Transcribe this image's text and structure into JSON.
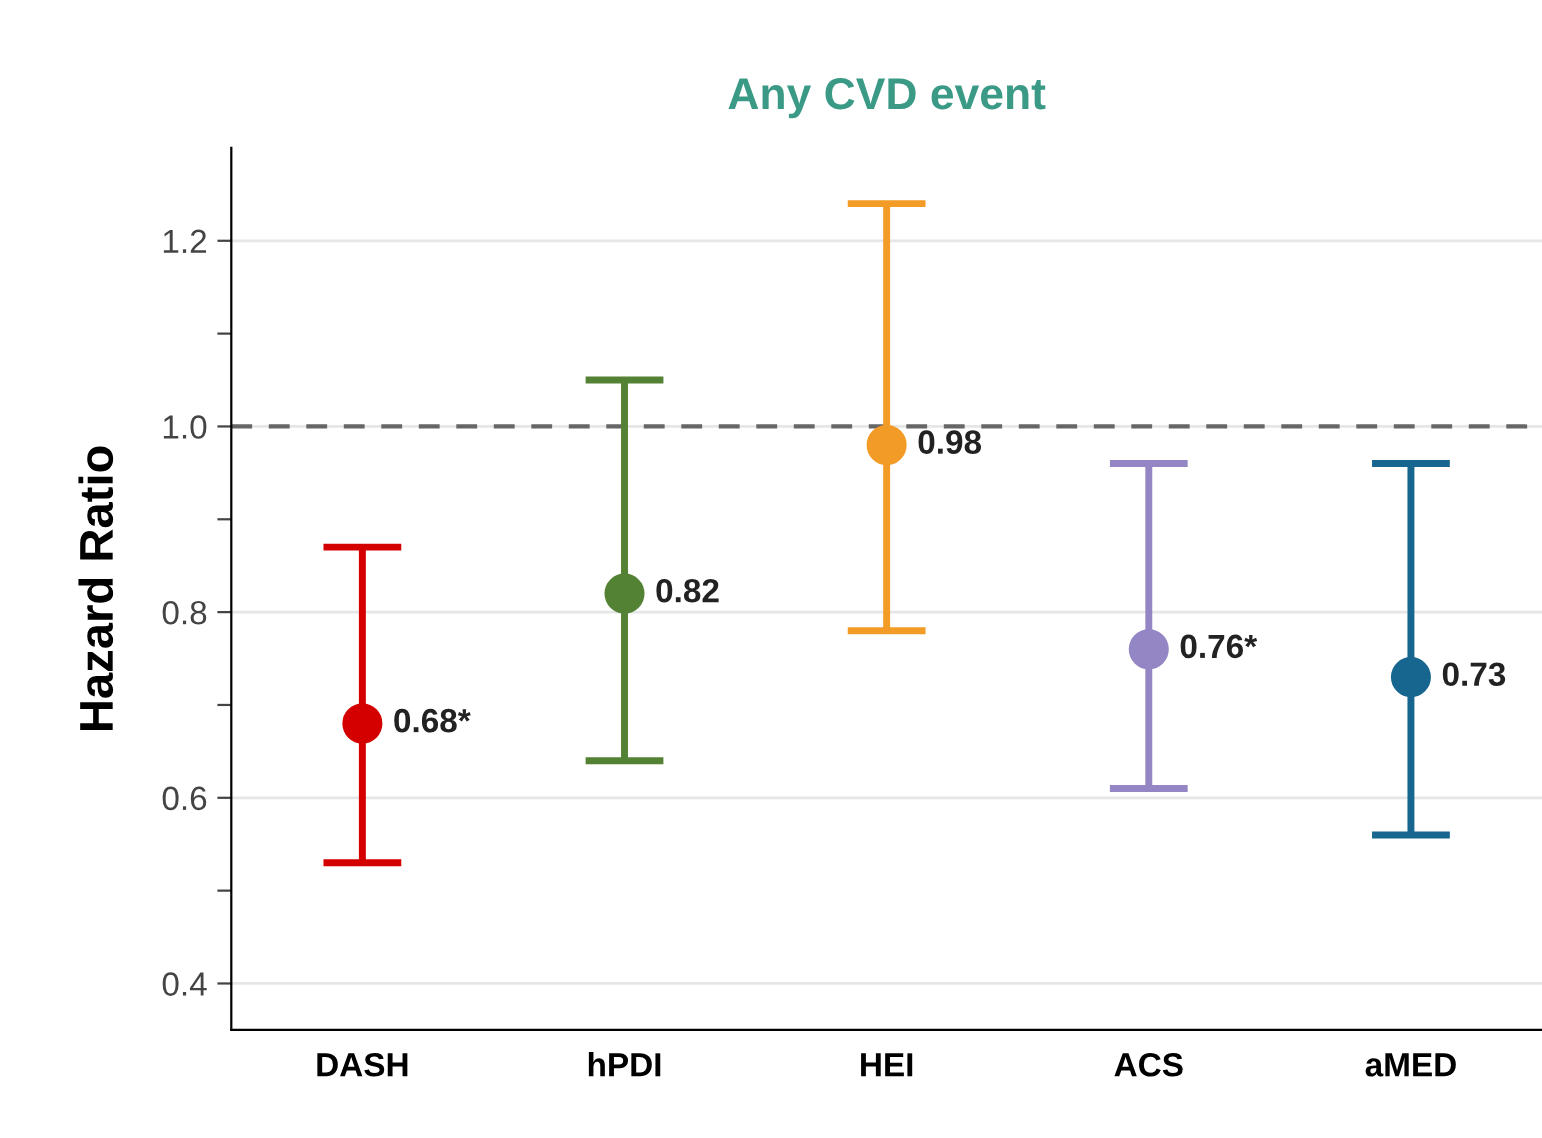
{
  "chart_data": {
    "type": "scatter",
    "title": "Any CVD event",
    "ylabel": "Hazard Ratio",
    "categories": [
      "DASH",
      "hPDI",
      "HEI",
      "ACS",
      "aMED"
    ],
    "values": [
      0.68,
      0.82,
      0.98,
      0.76,
      0.73
    ],
    "errors": [
      [
        0.53,
        0.87
      ],
      [
        0.64,
        1.05
      ],
      [
        0.78,
        1.24
      ],
      [
        0.61,
        0.96
      ],
      [
        0.56,
        0.96
      ]
    ],
    "colors": [
      "#d40000",
      "#548235",
      "#f29b26",
      "#9486c4",
      "#17668f"
    ],
    "value_labels": [
      "0.68*",
      "0.82",
      "0.98",
      "0.76*",
      "0.73"
    ],
    "ylim": [
      0.35,
      1.3
    ],
    "yticks": [
      {
        "value": 0.4,
        "label": "0.4"
      },
      {
        "value": 0.5,
        "label": null
      },
      {
        "value": 0.6,
        "label": "0.6"
      },
      {
        "value": 0.7,
        "label": null
      },
      {
        "value": 0.8,
        "label": "0.8"
      },
      {
        "value": 0.9,
        "label": null
      },
      {
        "value": 1.0,
        "label": "1.0"
      },
      {
        "value": 1.1,
        "label": null
      },
      {
        "value": 1.2,
        "label": "1.2"
      }
    ],
    "ref_lines": [
      {
        "axis": "y",
        "value": 1.0,
        "color": "#666666",
        "line_style": "dashed"
      }
    ],
    "grid": "y",
    "marker": "circle"
  }
}
